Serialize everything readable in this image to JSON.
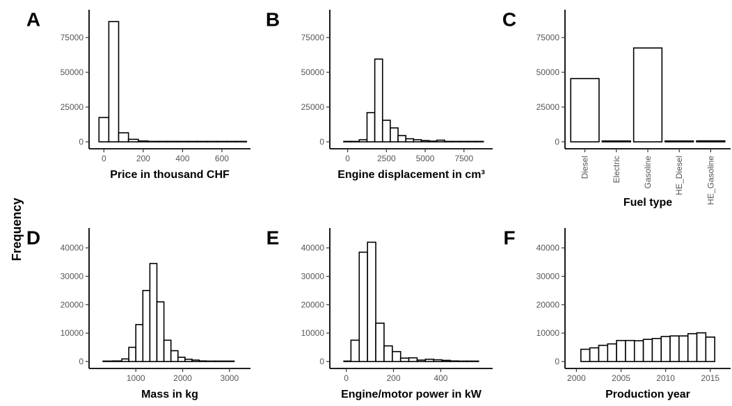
{
  "figure": {
    "ylabel": "Frequency"
  },
  "chart_data": [
    {
      "panel": "A",
      "type": "histogram",
      "xlabel": "Price in thousand CHF",
      "xlim": [
        -40,
        710
      ],
      "ylim": [
        0,
        95000
      ],
      "xticks": [
        0,
        200,
        400,
        600
      ],
      "yticks": [
        0,
        25000,
        50000,
        75000
      ],
      "bins": [
        {
          "x0": -25,
          "x1": 25,
          "y": 17500
        },
        {
          "x0": 25,
          "x1": 75,
          "y": 86500
        },
        {
          "x0": 75,
          "x1": 125,
          "y": 6500
        },
        {
          "x0": 125,
          "x1": 175,
          "y": 1800
        },
        {
          "x0": 175,
          "x1": 225,
          "y": 600
        },
        {
          "x0": 225,
          "x1": 275,
          "y": 300
        },
        {
          "x0": 275,
          "x1": 325,
          "y": 150
        },
        {
          "x0": 325,
          "x1": 375,
          "y": 80
        },
        {
          "x0": 375,
          "x1": 425,
          "y": 50
        },
        {
          "x0": 425,
          "x1": 475,
          "y": 30
        },
        {
          "x0": 475,
          "x1": 525,
          "y": 15
        },
        {
          "x0": 525,
          "x1": 575,
          "y": 10
        },
        {
          "x0": 575,
          "x1": 625,
          "y": 5
        },
        {
          "x0": 625,
          "x1": 675,
          "y": 3
        },
        {
          "x0": 675,
          "x1": 725,
          "y": 2
        }
      ]
    },
    {
      "panel": "B",
      "type": "histogram",
      "xlabel": "Engine displacement in cm³",
      "xlim": [
        -700,
        8900
      ],
      "ylim": [
        0,
        95000
      ],
      "xticks": [
        0,
        2500,
        5000,
        7500
      ],
      "yticks": [
        0,
        25000,
        50000,
        75000
      ],
      "bins": [
        {
          "x0": -250,
          "x1": 250,
          "y": 300
        },
        {
          "x0": 250,
          "x1": 750,
          "y": 200
        },
        {
          "x0": 750,
          "x1": 1250,
          "y": 1500
        },
        {
          "x0": 1250,
          "x1": 1750,
          "y": 21000
        },
        {
          "x0": 1750,
          "x1": 2250,
          "y": 59500
        },
        {
          "x0": 2250,
          "x1": 2750,
          "y": 15500
        },
        {
          "x0": 2750,
          "x1": 3250,
          "y": 10000
        },
        {
          "x0": 3250,
          "x1": 3750,
          "y": 4500
        },
        {
          "x0": 3750,
          "x1": 4250,
          "y": 2200
        },
        {
          "x0": 4250,
          "x1": 4750,
          "y": 1500
        },
        {
          "x0": 4750,
          "x1": 5250,
          "y": 900
        },
        {
          "x0": 5250,
          "x1": 5750,
          "y": 500
        },
        {
          "x0": 5750,
          "x1": 6250,
          "y": 1200
        },
        {
          "x0": 6250,
          "x1": 6750,
          "y": 300
        },
        {
          "x0": 6750,
          "x1": 7250,
          "y": 100
        },
        {
          "x0": 7250,
          "x1": 7750,
          "y": 50
        },
        {
          "x0": 7750,
          "x1": 8250,
          "y": 20
        },
        {
          "x0": 8250,
          "x1": 8750,
          "y": 10
        }
      ]
    },
    {
      "panel": "C",
      "type": "bar",
      "xlabel": "Fuel type",
      "ylim": [
        0,
        95000
      ],
      "yticks": [
        0,
        25000,
        50000,
        75000
      ],
      "categories": [
        "Diesel",
        "Electric",
        "Gasoline",
        "HE_Diesel",
        "HE_Gasoline"
      ],
      "values": [
        45500,
        400,
        67500,
        300,
        700
      ]
    },
    {
      "panel": "D",
      "type": "histogram",
      "xlabel": "Mass in kg",
      "xlim": [
        150,
        3300
      ],
      "ylim": [
        0,
        47000
      ],
      "xticks": [
        1000,
        2000,
        3000
      ],
      "yticks": [
        0,
        10000,
        20000,
        30000,
        40000
      ],
      "bins": [
        {
          "x0": 300,
          "x1": 500,
          "y": 50
        },
        {
          "x0": 500,
          "x1": 700,
          "y": 200
        },
        {
          "x0": 700,
          "x1": 850,
          "y": 900
        },
        {
          "x0": 850,
          "x1": 1000,
          "y": 5000
        },
        {
          "x0": 1000,
          "x1": 1150,
          "y": 13000
        },
        {
          "x0": 1150,
          "x1": 1300,
          "y": 25000
        },
        {
          "x0": 1300,
          "x1": 1450,
          "y": 34500
        },
        {
          "x0": 1450,
          "x1": 1600,
          "y": 21000
        },
        {
          "x0": 1600,
          "x1": 1750,
          "y": 7500
        },
        {
          "x0": 1750,
          "x1": 1900,
          "y": 3800
        },
        {
          "x0": 1900,
          "x1": 2050,
          "y": 1500
        },
        {
          "x0": 2050,
          "x1": 2200,
          "y": 800
        },
        {
          "x0": 2200,
          "x1": 2350,
          "y": 500
        },
        {
          "x0": 2350,
          "x1": 2500,
          "y": 200
        },
        {
          "x0": 2500,
          "x1": 2700,
          "y": 80
        },
        {
          "x0": 2700,
          "x1": 3100,
          "y": 30
        }
      ]
    },
    {
      "panel": "E",
      "type": "histogram",
      "xlabel": "Engine/motor power in kW",
      "xlim": [
        -40,
        590
      ],
      "ylim": [
        0,
        47000
      ],
      "xticks": [
        0,
        200,
        400
      ],
      "yticks": [
        0,
        10000,
        20000,
        30000,
        40000
      ],
      "bins": [
        {
          "x0": -10,
          "x1": 20,
          "y": 100
        },
        {
          "x0": 20,
          "x1": 55,
          "y": 7500
        },
        {
          "x0": 55,
          "x1": 90,
          "y": 38500
        },
        {
          "x0": 90,
          "x1": 125,
          "y": 42000
        },
        {
          "x0": 125,
          "x1": 160,
          "y": 13500
        },
        {
          "x0": 160,
          "x1": 195,
          "y": 5500
        },
        {
          "x0": 195,
          "x1": 230,
          "y": 3500
        },
        {
          "x0": 230,
          "x1": 265,
          "y": 1200
        },
        {
          "x0": 265,
          "x1": 300,
          "y": 1300
        },
        {
          "x0": 300,
          "x1": 335,
          "y": 500
        },
        {
          "x0": 335,
          "x1": 370,
          "y": 800
        },
        {
          "x0": 370,
          "x1": 405,
          "y": 600
        },
        {
          "x0": 405,
          "x1": 440,
          "y": 400
        },
        {
          "x0": 440,
          "x1": 475,
          "y": 200
        },
        {
          "x0": 475,
          "x1": 510,
          "y": 100
        },
        {
          "x0": 510,
          "x1": 560,
          "y": 50
        }
      ]
    },
    {
      "panel": "F",
      "type": "histogram",
      "xlabel": "Production year",
      "xlim": [
        1999.5,
        2016.5
      ],
      "ylim": [
        0,
        47000
      ],
      "xticks": [
        2000,
        2005,
        2010,
        2015
      ],
      "yticks": [
        0,
        10000,
        20000,
        30000,
        40000
      ],
      "bins": [
        {
          "x0": 2000.5,
          "x1": 2001.5,
          "y": 4300
        },
        {
          "x0": 2001.5,
          "x1": 2002.5,
          "y": 4800
        },
        {
          "x0": 2002.5,
          "x1": 2003.5,
          "y": 5700
        },
        {
          "x0": 2003.5,
          "x1": 2004.5,
          "y": 6200
        },
        {
          "x0": 2004.5,
          "x1": 2005.5,
          "y": 7400
        },
        {
          "x0": 2005.5,
          "x1": 2006.5,
          "y": 7400
        },
        {
          "x0": 2006.5,
          "x1": 2007.5,
          "y": 7300
        },
        {
          "x0": 2007.5,
          "x1": 2008.5,
          "y": 7800
        },
        {
          "x0": 2008.5,
          "x1": 2009.5,
          "y": 8100
        },
        {
          "x0": 2009.5,
          "x1": 2010.5,
          "y": 8800
        },
        {
          "x0": 2010.5,
          "x1": 2011.5,
          "y": 9000
        },
        {
          "x0": 2011.5,
          "x1": 2012.5,
          "y": 9000
        },
        {
          "x0": 2012.5,
          "x1": 2013.5,
          "y": 9800
        },
        {
          "x0": 2013.5,
          "x1": 2014.5,
          "y": 10100
        },
        {
          "x0": 2014.5,
          "x1": 2015.5,
          "y": 8600
        }
      ]
    }
  ]
}
